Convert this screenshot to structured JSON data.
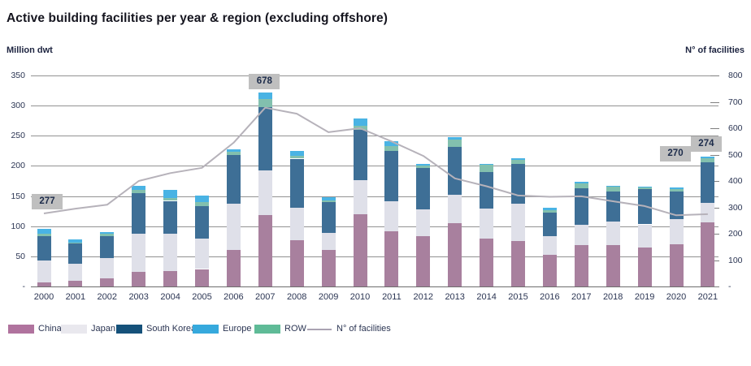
{
  "title": "Active building facilities per year & region (excluding offshore)",
  "left_axis": {
    "label": "Million dwt",
    "tick_labels": [
      "350",
      "300",
      "250",
      "200",
      "150",
      "100",
      "50",
      "-"
    ],
    "tick_values": [
      350,
      300,
      250,
      200,
      150,
      100,
      50,
      0
    ],
    "max": 350
  },
  "right_axis": {
    "label": "N° of facilities",
    "tick_labels": [
      "800",
      "700",
      "600",
      "500",
      "400",
      "300",
      "200",
      "100",
      "-"
    ],
    "tick_values": [
      800,
      700,
      600,
      500,
      400,
      300,
      200,
      100,
      0
    ],
    "max": 800
  },
  "colors": {
    "background": "#ffffff",
    "grid": "#7f7f7f",
    "title_text": "#15151f",
    "axis_text": "#2b3553",
    "callout_bg": "#bfbfbf",
    "callout_text": "#1c2b4a",
    "line": "#b6b2ba",
    "series": {
      "China": "#a8809e",
      "Japan": "#dfe0e9",
      "South Korea": "#3e6f96",
      "Europe": "#49b3e4",
      "ROW": "#82c0ae"
    },
    "legend_series": {
      "China": "#b0739e",
      "Japan": "#e9e8ee",
      "South Korea": "#15517a",
      "Europe": "#36a9dd",
      "ROW": "#5fbb97",
      "N° of facilities": "#aaa3b2"
    }
  },
  "legend": [
    {
      "label": "China",
      "type": "bar"
    },
    {
      "label": "Japan",
      "type": "bar"
    },
    {
      "label": "South Korea",
      "type": "bar"
    },
    {
      "label": "Europe",
      "type": "bar"
    },
    {
      "label": "ROW",
      "type": "bar"
    },
    {
      "label": "N° of facilities",
      "type": "line"
    }
  ],
  "chart_data": {
    "type": "bar",
    "subtype": "stacked-bar-with-line",
    "title": "Active building facilities per year & region (excluding offshore)",
    "xlabel": "",
    "ylabel_left": "Million dwt",
    "ylabel_right": "N° of facilities",
    "ylim_left": [
      0,
      350
    ],
    "ylim_right": [
      0,
      800
    ],
    "grid": true,
    "legend_position": "bottom",
    "categories": [
      "2000",
      "2001",
      "2002",
      "2003",
      "2004",
      "2005",
      "2006",
      "2007",
      "2008",
      "2009",
      "2010",
      "2011",
      "2012",
      "2013",
      "2014",
      "2015",
      "2016",
      "2017",
      "2018",
      "2019",
      "2020",
      "2021"
    ],
    "stack_order": [
      "China",
      "Japan",
      "South Korea",
      "ROW",
      "Europe"
    ],
    "series": [
      {
        "name": "China",
        "axis": "left",
        "values": [
          7,
          10,
          13,
          24,
          26,
          29,
          60,
          118,
          77,
          61,
          120,
          91,
          84,
          105,
          79,
          75,
          53,
          69,
          69,
          65,
          70,
          106
        ]
      },
      {
        "name": "Japan",
        "axis": "left",
        "values": [
          36,
          28,
          34,
          63,
          62,
          50,
          77,
          75,
          54,
          28,
          56,
          51,
          44,
          47,
          50,
          62,
          30,
          33,
          39,
          38,
          42,
          33
        ]
      },
      {
        "name": "South Korea",
        "axis": "left",
        "values": [
          40,
          33,
          36,
          68,
          54,
          54,
          81,
          105,
          81,
          51,
          84,
          83,
          68,
          80,
          61,
          66,
          40,
          61,
          50,
          59,
          45,
          67
        ]
      },
      {
        "name": "ROW",
        "axis": "left",
        "values": [
          4,
          2,
          4,
          5,
          5,
          7,
          5,
          13,
          5,
          3,
          7,
          8,
          4,
          12,
          12,
          7,
          3,
          8,
          7,
          2,
          4,
          7
        ]
      },
      {
        "name": "Europe",
        "axis": "left",
        "values": [
          9,
          5,
          3,
          7,
          13,
          11,
          4,
          11,
          8,
          5,
          12,
          8,
          3,
          4,
          2,
          3,
          4,
          3,
          2,
          2,
          3,
          2
        ]
      }
    ],
    "line_series": {
      "name": "N° of facilities",
      "axis": "right",
      "values": [
        277,
        295,
        310,
        400,
        430,
        450,
        545,
        678,
        655,
        585,
        600,
        550,
        495,
        410,
        380,
        345,
        340,
        342,
        323,
        305,
        270,
        274
      ]
    },
    "annotations": [
      {
        "category": "2000",
        "text": "277"
      },
      {
        "category": "2007",
        "text": "678"
      },
      {
        "category": "2020",
        "text": "270"
      },
      {
        "category": "2021",
        "text": "274"
      }
    ]
  }
}
